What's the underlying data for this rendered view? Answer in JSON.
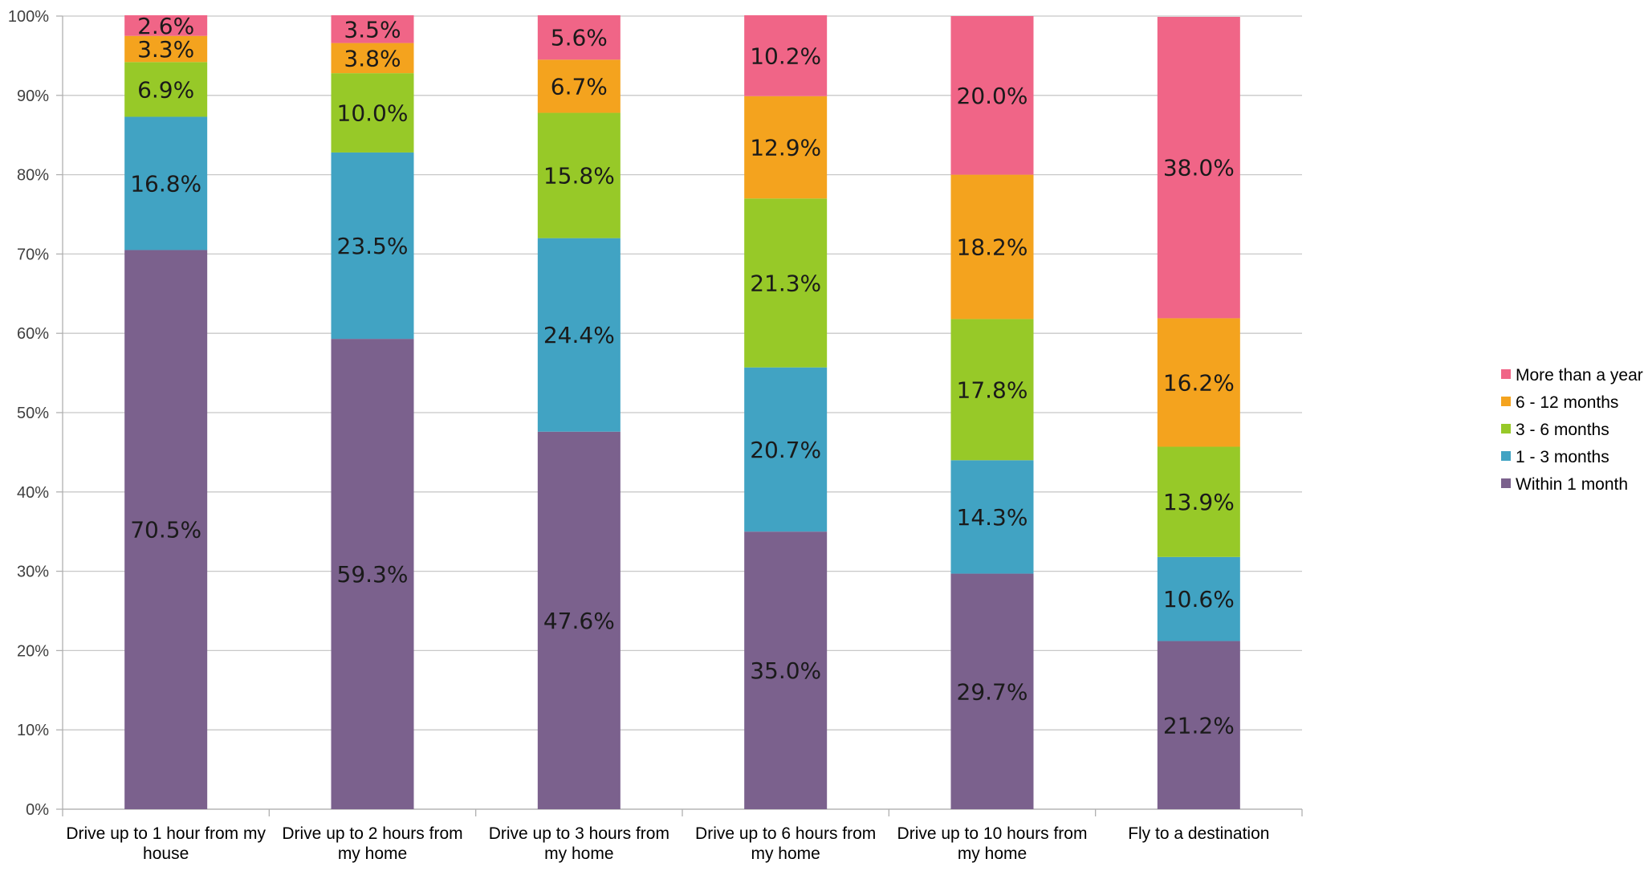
{
  "chart_data": {
    "type": "bar",
    "stacked": true,
    "ylim": [
      0,
      100
    ],
    "yticks": [
      "0%",
      "10%",
      "20%",
      "30%",
      "40%",
      "50%",
      "60%",
      "70%",
      "80%",
      "90%",
      "100%"
    ],
    "grid": true,
    "legend_position": "right",
    "categories": [
      [
        "Drive up to 1 hour from my",
        "house"
      ],
      [
        "Drive up to 2 hours from",
        "my home"
      ],
      [
        "Drive up to 3 hours from",
        "my home"
      ],
      [
        "Drive up to 6 hours from",
        "my home"
      ],
      [
        "Drive up to 10 hours from",
        "my home"
      ],
      [
        "Fly to a destination"
      ]
    ],
    "series": [
      {
        "name": "Within 1 month",
        "color": "#7b618d",
        "values": [
          70.5,
          59.3,
          47.6,
          35.0,
          29.7,
          21.2
        ],
        "labels": [
          "70.5%",
          "59.3%",
          "47.6%",
          "35.0%",
          "29.7%",
          "21.2%"
        ]
      },
      {
        "name": "1 - 3 months",
        "color": "#41a3c3",
        "values": [
          16.8,
          23.5,
          24.4,
          20.7,
          14.3,
          10.6
        ],
        "labels": [
          "16.8%",
          "23.5%",
          "24.4%",
          "20.7%",
          "14.3%",
          "10.6%"
        ]
      },
      {
        "name": "3 - 6 months",
        "color": "#97c928",
        "values": [
          6.9,
          10.0,
          15.8,
          21.3,
          17.8,
          13.9
        ],
        "labels": [
          "6.9%",
          "10.0%",
          "15.8%",
          "21.3%",
          "17.8%",
          "13.9%"
        ]
      },
      {
        "name": "6 - 12 months",
        "color": "#f4a31e",
        "values": [
          3.3,
          3.8,
          6.7,
          12.9,
          18.2,
          16.2
        ],
        "labels": [
          "3.3%",
          "3.8%",
          "6.7%",
          "12.9%",
          "18.2%",
          "16.2%"
        ]
      },
      {
        "name": "More than a year",
        "color": "#f06587",
        "values": [
          2.6,
          3.5,
          5.6,
          10.2,
          20.0,
          38.0
        ],
        "labels": [
          "2.6%",
          "3.5%",
          "5.6%",
          "10.2%",
          "20.0%",
          "38.0%"
        ]
      }
    ],
    "legend_order": [
      "More than a year",
      "6 - 12 months",
      "3 - 6 months",
      "1 - 3 months",
      "Within 1 month"
    ]
  }
}
